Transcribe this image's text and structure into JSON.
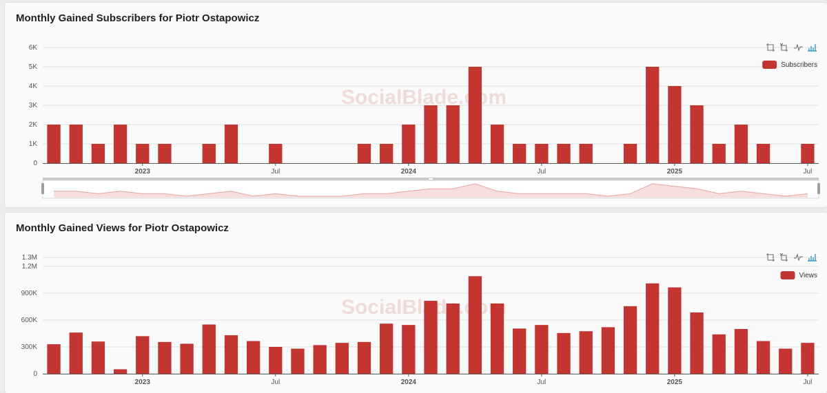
{
  "colors": {
    "bar": "#c23531",
    "watermark": "#e8b4b4",
    "toolbox": "#666666",
    "toolbox_active": "#3e98c5"
  },
  "toolbox": [
    "zoom-icon",
    "zoom-reset-icon",
    "line-chart-icon",
    "bar-chart-icon"
  ],
  "watermark": "SocialBlade.com",
  "chart_data": [
    {
      "type": "bar",
      "title": "Monthly Gained Subscribers for Piotr Ostapowicz",
      "legend": "top-right",
      "grid": true,
      "x": [
        "2022-09",
        "2022-10",
        "2022-11",
        "2022-12",
        "2023-01",
        "2023-02",
        "2023-03",
        "2023-04",
        "2023-05",
        "2023-06",
        "2023-07",
        "2023-08",
        "2023-09",
        "2023-10",
        "2023-11",
        "2023-12",
        "2024-01",
        "2024-02",
        "2024-03",
        "2024-04",
        "2024-05",
        "2024-06",
        "2024-07",
        "2024-08",
        "2024-09",
        "2024-10",
        "2024-11",
        "2024-12",
        "2025-01",
        "2025-02",
        "2025-03",
        "2025-04",
        "2025-05",
        "2025-06",
        "2025-07"
      ],
      "series": [
        {
          "name": "Subscribers",
          "values": [
            2000,
            2000,
            1000,
            2000,
            1000,
            1000,
            0,
            1000,
            2000,
            0,
            1000,
            0,
            0,
            0,
            1000,
            1000,
            2000,
            3000,
            3000,
            5000,
            2000,
            1000,
            1000,
            1000,
            1000,
            0,
            1000,
            5000,
            4000,
            3000,
            1000,
            2000,
            1000,
            0,
            1000
          ]
        }
      ],
      "ylim": [
        0,
        6000
      ],
      "yticks": [
        "0",
        "1K",
        "2K",
        "3K",
        "4K",
        "5K",
        "6K"
      ],
      "xticks": [
        {
          "label": "2023",
          "bold": true
        },
        {
          "label": "Jul",
          "bold": false
        },
        {
          "label": "2024",
          "bold": true
        },
        {
          "label": "Jul",
          "bold": false
        },
        {
          "label": "2025",
          "bold": true
        },
        {
          "label": "Jul",
          "bold": false
        }
      ]
    },
    {
      "type": "bar",
      "title": "Monthly Gained Views for Piotr Ostapowicz",
      "legend": "top-right",
      "grid": true,
      "x": [
        "2022-09",
        "2022-10",
        "2022-11",
        "2022-12",
        "2023-01",
        "2023-02",
        "2023-03",
        "2023-04",
        "2023-05",
        "2023-06",
        "2023-07",
        "2023-08",
        "2023-09",
        "2023-10",
        "2023-11",
        "2023-12",
        "2024-01",
        "2024-02",
        "2024-03",
        "2024-04",
        "2024-05",
        "2024-06",
        "2024-07",
        "2024-08",
        "2024-09",
        "2024-10",
        "2024-11",
        "2024-12",
        "2025-01",
        "2025-02",
        "2025-03",
        "2025-04",
        "2025-05",
        "2025-06",
        "2025-07"
      ],
      "series": [
        {
          "name": "Views",
          "values": [
            330000,
            460000,
            360000,
            50000,
            420000,
            355000,
            335000,
            550000,
            430000,
            365000,
            300000,
            280000,
            320000,
            345000,
            355000,
            560000,
            545000,
            815000,
            785000,
            1090000,
            785000,
            505000,
            545000,
            455000,
            475000,
            520000,
            755000,
            1010000,
            965000,
            685000,
            440000,
            500000,
            365000,
            280000,
            345000
          ]
        }
      ],
      "ylim": [
        0,
        1300000
      ],
      "yticks": [
        "0",
        "300K",
        "600K",
        "900K",
        "1.2M",
        "1.3M"
      ],
      "xticks": [
        {
          "label": "2023",
          "bold": true
        },
        {
          "label": "Jul",
          "bold": false
        },
        {
          "label": "2024",
          "bold": true
        },
        {
          "label": "Jul",
          "bold": false
        },
        {
          "label": "2025",
          "bold": true
        },
        {
          "label": "Jul",
          "bold": false
        }
      ]
    }
  ]
}
